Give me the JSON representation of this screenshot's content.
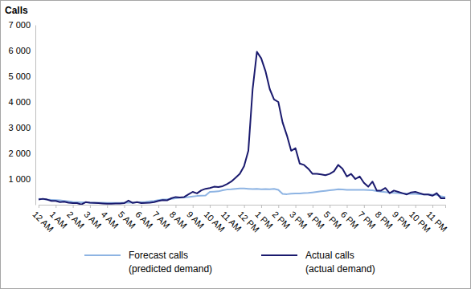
{
  "chart_data": {
    "type": "line",
    "y_label": "Calls",
    "categories": [
      "12 AM",
      null,
      null,
      null,
      "1 AM",
      null,
      null,
      null,
      "2 AM",
      null,
      null,
      null,
      "3 AM",
      null,
      null,
      null,
      "4 AM",
      null,
      null,
      null,
      "5 AM",
      null,
      null,
      null,
      "6 AM",
      null,
      null,
      null,
      "7 AM",
      null,
      null,
      null,
      "8 AM",
      null,
      null,
      null,
      "9 AM",
      null,
      null,
      null,
      "10 AM",
      null,
      null,
      null,
      "11 AM",
      null,
      null,
      null,
      "12 PM",
      null,
      null,
      null,
      "1 PM",
      null,
      null,
      null,
      "2 PM",
      null,
      null,
      null,
      "3 PM",
      null,
      null,
      null,
      "4 PM",
      null,
      null,
      null,
      "5 PM",
      null,
      null,
      null,
      "6 PM",
      null,
      null,
      null,
      "7 PM",
      null,
      null,
      null,
      "8 PM",
      null,
      null,
      null,
      "9 PM",
      null,
      null,
      null,
      "10 PM",
      null,
      null,
      null,
      "11 PM",
      null,
      null,
      null
    ],
    "series": [
      {
        "name": "Forecast calls\n(predicted demand)",
        "color": "#8eb4e3",
        "values": [
          230,
          220,
          200,
          190,
          180,
          170,
          150,
          130,
          110,
          100,
          90,
          90,
          80,
          80,
          80,
          75,
          70,
          70,
          70,
          70,
          75,
          80,
          85,
          90,
          100,
          110,
          130,
          150,
          180,
          200,
          210,
          230,
          250,
          270,
          280,
          300,
          320,
          340,
          350,
          360,
          500,
          510,
          520,
          560,
          590,
          600,
          620,
          630,
          630,
          620,
          610,
          620,
          600,
          610,
          600,
          620,
          580,
          420,
          410,
          430,
          440,
          440,
          450,
          460,
          480,
          500,
          520,
          540,
          560,
          580,
          600,
          590,
          580,
          580,
          580,
          580,
          580,
          570,
          560,
          530,
          510,
          490,
          470,
          460,
          450,
          440,
          430,
          420,
          420,
          410,
          400,
          400,
          390,
          380,
          330,
          300
        ]
      },
      {
        "name": "Actual calls\n(actual demand)",
        "color": "#1a1a6e",
        "values": [
          200,
          230,
          200,
          150,
          150,
          100,
          120,
          80,
          60,
          60,
          10,
          100,
          80,
          70,
          60,
          50,
          40,
          40,
          50,
          50,
          60,
          160,
          70,
          100,
          60,
          70,
          80,
          100,
          150,
          180,
          170,
          250,
          300,
          280,
          300,
          400,
          500,
          440,
          560,
          620,
          650,
          700,
          690,
          720,
          800,
          900,
          1050,
          1200,
          1500,
          2100,
          4500,
          5950,
          5700,
          5200,
          4500,
          4100,
          4000,
          3200,
          2700,
          2100,
          2200,
          1600,
          1550,
          1400,
          1200,
          1200,
          1180,
          1150,
          1200,
          1300,
          1550,
          1400,
          1100,
          1200,
          1000,
          1100,
          850,
          700,
          900,
          550,
          550,
          650,
          450,
          550,
          500,
          450,
          400,
          480,
          500,
          450,
          400,
          400,
          350,
          450,
          250,
          250
        ]
      }
    ],
    "ylim": [
      0,
      7000
    ],
    "yticks": [
      {
        "value": 1000,
        "label": "1 000"
      },
      {
        "value": 2000,
        "label": "2 000"
      },
      {
        "value": 3000,
        "label": "3 000"
      },
      {
        "value": 4000,
        "label": "4 000"
      },
      {
        "value": 5000,
        "label": "5 000"
      },
      {
        "value": 6000,
        "label": "6 000"
      },
      {
        "value": 7000,
        "label": "7 000"
      }
    ],
    "grid": false,
    "legend": "bottom"
  }
}
